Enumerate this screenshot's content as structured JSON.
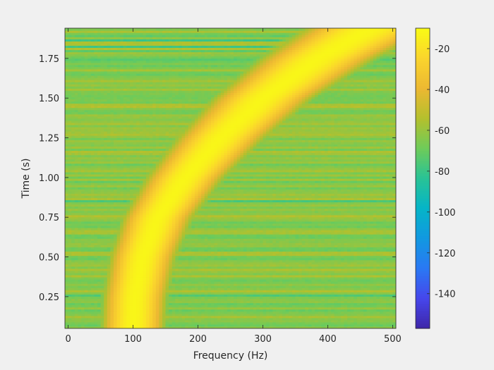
{
  "chart_data": {
    "type": "heatmap",
    "title": "",
    "xlabel": "Frequency (Hz)",
    "ylabel": "Time (s)",
    "xlim": [
      -5,
      505
    ],
    "ylim": [
      0.05,
      1.94
    ],
    "x_ticks": [
      0,
      100,
      200,
      300,
      400,
      500
    ],
    "x_tick_labels": [
      "0",
      "100",
      "200",
      "300",
      "400",
      "500"
    ],
    "y_ticks": [
      0.25,
      0.5,
      0.75,
      1.0,
      1.25,
      1.5,
      1.75
    ],
    "y_tick_labels": [
      "0.25",
      "0.50",
      "0.75",
      "1.00",
      "1.25",
      "1.50",
      "1.75"
    ],
    "colorbar": {
      "colormap": "parula",
      "lim": [
        -157,
        -10
      ],
      "ticks": [
        -20,
        -40,
        -60,
        -80,
        -100,
        -120,
        -140
      ],
      "tick_labels": [
        "-20",
        "-40",
        "-60",
        "-80",
        "-100",
        "-120",
        "-140"
      ]
    },
    "background_level_db": -62,
    "chirp": {
      "description": "quadratic chirp ridge",
      "peak_level_db": -12,
      "ridge": [
        {
          "time": 0.05,
          "frequency": 100
        },
        {
          "time": 0.25,
          "frequency": 103
        },
        {
          "time": 0.5,
          "frequency": 115
        },
        {
          "time": 0.75,
          "frequency": 138
        },
        {
          "time": 1.0,
          "frequency": 180
        },
        {
          "time": 1.25,
          "frequency": 235
        },
        {
          "time": 1.5,
          "frequency": 300
        },
        {
          "time": 1.75,
          "frequency": 385
        },
        {
          "time": 1.94,
          "frequency": 465
        }
      ]
    }
  }
}
